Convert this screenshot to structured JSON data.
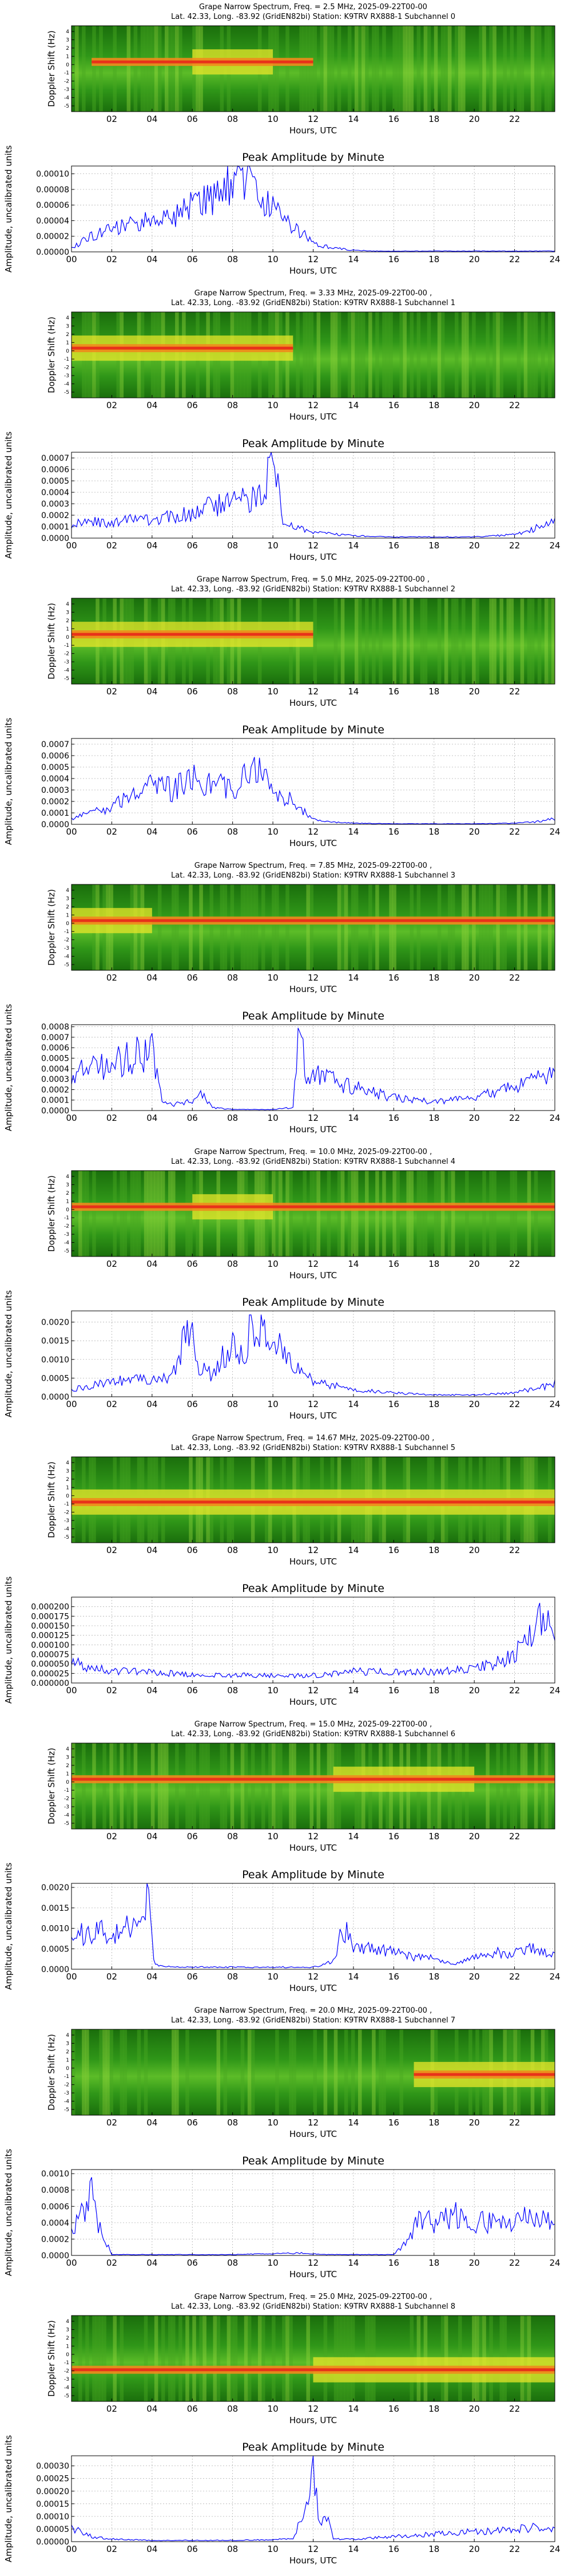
{
  "figure": {
    "spectrogram_ylabel": "Doppler Shift (Hz)",
    "spectrogram_yticks": [
      "4",
      "3",
      "2",
      "1",
      "0",
      "-1",
      "-2",
      "-3",
      "-4",
      "-5"
    ],
    "spectrogram_xticks": [
      "02",
      "04",
      "06",
      "08",
      "10",
      "12",
      "14",
      "16",
      "18",
      "20",
      "22"
    ],
    "amplitude_xticks": [
      "00",
      "02",
      "04",
      "06",
      "08",
      "10",
      "12",
      "14",
      "16",
      "18",
      "20",
      "22",
      "24"
    ],
    "xlabel": "Hours, UTC",
    "amp_title": "Peak Amplitude by Minute",
    "amp_ylabel": "Amplitude, uncalibrated units",
    "colors": {
      "line": "#0000ff",
      "spec_dark": "#1f7a10",
      "spec_mid": "#39a81e",
      "spec_yellow": "#e8e62a",
      "spec_orange": "#f08a1c",
      "spec_red": "#e8321a"
    }
  },
  "chart_data": [
    {
      "type": "heatmap",
      "title_line1": "Grape Narrow Spectrum, Freq. = 2.5 MHz, 2025-09-22T00-00",
      "title_line2": "Lat.  42.33, Long. -83.92 (GridEN82bi) Station: K9TRV RX888-1 Subchannel 0",
      "carrier_hours": [
        1.0,
        12.0
      ],
      "carrier_hz": 0.0,
      "strong_hours": [
        6.0,
        10.0
      ]
    },
    {
      "type": "line",
      "title": "Peak Amplitude by Minute",
      "ylim": [
        0,
        0.00011
      ],
      "yticks": [
        "0.00000",
        "0.00002",
        "0.00004",
        "0.00006",
        "0.00008",
        "0.00010"
      ],
      "x": [
        0,
        1,
        2,
        3,
        4,
        5,
        6,
        7,
        7.5,
        8,
        8.5,
        9,
        10,
        11,
        12,
        13,
        14,
        15,
        16,
        18,
        20,
        22,
        24
      ],
      "values": [
        5e-06,
        2e-05,
        3e-05,
        3.5e-05,
        4e-05,
        4.5e-05,
        6e-05,
        7e-05,
        9e-05,
        8.5e-05,
        9.5e-05,
        8e-05,
        6e-05,
        3.5e-05,
        1e-05,
        5e-06,
        2e-06,
        1e-06,
        1e-06,
        1e-06,
        1e-06,
        1e-06,
        1e-06
      ]
    },
    {
      "type": "heatmap",
      "title_line1": "Grape Narrow Spectrum, Freq. = 3.33 MHz, 2025-09-22T00-00 ,",
      "title_line2": "Lat.  42.33, Long. -83.92 (GridEN82bi) Station: K9TRV RX888-1 Subchannel 1",
      "carrier_hours": [
        0.0,
        11.0
      ],
      "carrier_hz": 0.0,
      "strong_hours": [
        0.0,
        11.0
      ]
    },
    {
      "type": "line",
      "title": "Peak Amplitude by Minute",
      "ylim": [
        0,
        0.00075
      ],
      "yticks": [
        "0.0000",
        "0.0001",
        "0.0002",
        "0.0003",
        "0.0004",
        "0.0005",
        "0.0006",
        "0.0007"
      ],
      "x": [
        0,
        1,
        2,
        3,
        4,
        5,
        6,
        7,
        8,
        9,
        9.5,
        10,
        10.5,
        11,
        12,
        14,
        16,
        18,
        20,
        22,
        23,
        24
      ],
      "values": [
        0.00012,
        0.00015,
        0.00012,
        0.00018,
        0.00015,
        0.0002,
        0.00022,
        0.00028,
        0.0003,
        0.00035,
        0.0004,
        0.0007,
        0.00015,
        0.0001,
        5e-05,
        2e-05,
        1e-05,
        1e-05,
        1e-05,
        3e-05,
        8e-05,
        0.00018
      ]
    },
    {
      "type": "heatmap",
      "title_line1": "Grape Narrow Spectrum, Freq. = 5.0 MHz, 2025-09-22T00-00 ,",
      "title_line2": "Lat.  42.33, Long. -83.92 (GridEN82bi) Station: K9TRV RX888-1 Subchannel 2",
      "carrier_hours": [
        0.0,
        12.0
      ],
      "carrier_hz": 0.0,
      "strong_hours": [
        0.0,
        12.0
      ]
    },
    {
      "type": "line",
      "title": "Peak Amplitude by Minute",
      "ylim": [
        0,
        0.00075
      ],
      "yticks": [
        "0.0000",
        "0.0001",
        "0.0002",
        "0.0003",
        "0.0004",
        "0.0005",
        "0.0006",
        "0.0007"
      ],
      "x": [
        0,
        1,
        2,
        3,
        4,
        5,
        6,
        7,
        8,
        9,
        10,
        11,
        12,
        13,
        14,
        16,
        18,
        20,
        22,
        23,
        24
      ],
      "values": [
        5e-05,
        0.0001,
        0.00015,
        0.00025,
        0.00035,
        0.0003,
        0.0004,
        0.00035,
        0.0003,
        0.0005,
        0.0003,
        0.0002,
        5e-05,
        2e-05,
        1e-05,
        5e-06,
        5e-06,
        5e-06,
        1e-05,
        2e-05,
        5e-05
      ]
    },
    {
      "type": "heatmap",
      "title_line1": "Grape Narrow Spectrum, Freq. = 7.85 MHz, 2025-09-22T00-00 ,",
      "title_line2": "Lat.  42.33, Long. -83.92 (GridEN82bi) Station: K9TRV RX888-1 Subchannel 3",
      "carrier_hours": [
        0.0,
        24.0
      ],
      "carrier_hz": 0.0,
      "strong_hours": [
        0.0,
        4.0
      ]
    },
    {
      "type": "line",
      "title": "Peak Amplitude by Minute",
      "ylim": [
        0,
        0.00082
      ],
      "yticks": [
        "0.0000",
        "0.0001",
        "0.0002",
        "0.0003",
        "0.0004",
        "0.0005",
        "0.0006",
        "0.0007",
        "0.0008"
      ],
      "x": [
        0,
        1,
        2,
        3,
        4,
        4.5,
        5,
        6,
        6.5,
        7,
        8,
        9,
        10,
        11,
        11.3,
        11.6,
        12,
        13,
        14,
        16,
        18,
        20,
        22,
        23,
        24
      ],
      "values": [
        0.00035,
        0.0004,
        0.00045,
        0.0005,
        0.0006,
        0.0001,
        5e-05,
        0.0001,
        0.00015,
        3e-05,
        1e-05,
        1e-05,
        1e-05,
        3e-05,
        0.00075,
        0.0004,
        0.00035,
        0.00028,
        0.00022,
        0.00012,
        8e-05,
        0.00012,
        0.00022,
        0.0003,
        0.00035
      ]
    },
    {
      "type": "heatmap",
      "title_line1": "Grape Narrow Spectrum, Freq. = 10.0 MHz, 2025-09-22T00-00 ,",
      "title_line2": "Lat.  42.33, Long. -83.92 (GridEN82bi) Station: K9TRV RX888-1 Subchannel 4",
      "carrier_hours": [
        0.0,
        24.0
      ],
      "carrier_hz": 0.0,
      "strong_hours": [
        6.0,
        10.0
      ]
    },
    {
      "type": "line",
      "title": "Peak Amplitude by Minute",
      "ylim": [
        0,
        0.0023
      ],
      "yticks": [
        "0.0000",
        "0.0005",
        "0.0010",
        "0.0015",
        "0.0020"
      ],
      "x": [
        0,
        1,
        2,
        3,
        4,
        5,
        6,
        6.3,
        7,
        8,
        8.5,
        9,
        10,
        10.5,
        11,
        12,
        13,
        14,
        16,
        18,
        20,
        22,
        24
      ],
      "values": [
        0.0002,
        0.0003,
        0.0004,
        0.0005,
        0.0004,
        0.0006,
        0.0022,
        0.0008,
        0.0006,
        0.0015,
        0.001,
        0.002,
        0.0015,
        0.0012,
        0.0008,
        0.0004,
        0.0003,
        0.0002,
        0.0001,
        5e-05,
        5e-05,
        0.0001,
        0.00035
      ]
    },
    {
      "type": "heatmap",
      "title_line1": "Grape Narrow Spectrum, Freq. = 14.67 MHz, 2025-09-22T00-00 ,",
      "title_line2": "Lat.  42.33, Long. -83.92 (GridEN82bi) Station: K9TRV RX888-1 Subchannel 5",
      "carrier_hours": [
        0.0,
        24.0
      ],
      "carrier_hz": -1.0,
      "strong_hours": [
        0.0,
        24.0
      ]
    },
    {
      "type": "line",
      "title": "Peak Amplitude by Minute",
      "ylim": [
        0,
        0.000225
      ],
      "yticks": [
        "0.000000",
        "0.000025",
        "0.000050",
        "0.000075",
        "0.000100",
        "0.000125",
        "0.000150",
        "0.000175",
        "0.000200"
      ],
      "x": [
        0,
        1,
        2,
        4,
        6,
        8,
        10,
        12,
        14,
        16,
        18,
        20,
        21,
        22,
        22.5,
        23,
        23.5,
        24
      ],
      "values": [
        6e-05,
        4e-05,
        3e-05,
        3e-05,
        2e-05,
        2e-05,
        2e-05,
        2e-05,
        3e-05,
        3e-05,
        3e-05,
        4e-05,
        5e-05,
        8e-05,
        0.0001,
        0.00014,
        0.0002,
        0.0001
      ]
    },
    {
      "type": "heatmap",
      "title_line1": "Grape Narrow Spectrum, Freq. = 15.0 MHz, 2025-09-22T00-00 ,",
      "title_line2": "Lat.  42.33, Long. -83.92 (GridEN82bi) Station: K9TRV RX888-1 Subchannel 6",
      "carrier_hours": [
        0.0,
        24.0
      ],
      "carrier_hz": 0.0,
      "strong_hours": [
        13.0,
        20.0
      ]
    },
    {
      "type": "line",
      "title": "Peak Amplitude by Minute",
      "ylim": [
        0,
        0.0021
      ],
      "yticks": [
        "0.0000",
        "0.0005",
        "0.0010",
        "0.0015",
        "0.0020"
      ],
      "x": [
        0,
        1,
        2,
        3,
        3.8,
        4.1,
        5,
        8,
        12,
        13,
        13.5,
        14,
        15,
        16,
        17,
        18,
        19,
        20,
        21,
        22,
        23,
        24
      ],
      "values": [
        0.0008,
        0.0009,
        0.0009,
        0.001,
        0.002,
        0.0001,
        5e-05,
        5e-05,
        5e-05,
        0.0002,
        0.001,
        0.0006,
        0.0005,
        0.0004,
        0.0003,
        0.0003,
        0.0001,
        0.0003,
        0.0004,
        0.0004,
        0.0005,
        0.0004
      ]
    },
    {
      "type": "heatmap",
      "title_line1": "Grape Narrow Spectrum, Freq. = 20.0 MHz, 2025-09-22T00-00 ,",
      "title_line2": "Lat.  42.33, Long. -83.92 (GridEN82bi) Station: K9TRV RX888-1 Subchannel 7",
      "carrier_hours": [
        17.0,
        24.0
      ],
      "carrier_hz": -1.0,
      "strong_hours": [
        17.0,
        24.0
      ]
    },
    {
      "type": "line",
      "title": "Peak Amplitude by Minute",
      "ylim": [
        0,
        0.00105
      ],
      "yticks": [
        "0.0000",
        "0.0002",
        "0.0004",
        "0.0006",
        "0.0008",
        "0.0010"
      ],
      "x": [
        0,
        0.5,
        1,
        1.3,
        2,
        4,
        8,
        11.5,
        12.5,
        14,
        16,
        16.8,
        17.2,
        18,
        19,
        20,
        21,
        22,
        23,
        24
      ],
      "values": [
        0.0003,
        0.0005,
        0.0008,
        0.0004,
        1e-05,
        1e-05,
        1e-05,
        3e-05,
        1e-05,
        1e-05,
        1e-05,
        0.0002,
        0.0005,
        0.0004,
        0.0005,
        0.0004,
        0.0004,
        0.0004,
        0.0005,
        0.0004
      ]
    },
    {
      "type": "heatmap",
      "title_line1": "Grape Narrow Spectrum, Freq. = 25.0 MHz, 2025-09-22T00-00 ,",
      "title_line2": "Lat.  42.33, Long. -83.92 (GridEN82bi) Station: K9TRV RX888-1 Subchannel 8",
      "carrier_hours": [
        0.0,
        24.0
      ],
      "carrier_hz": -2.0,
      "strong_hours": [
        12.0,
        24.0
      ]
    },
    {
      "type": "line",
      "title": "Peak Amplitude by Minute",
      "ylim": [
        0,
        0.00034
      ],
      "yticks": [
        "0.00000",
        "0.00005",
        "0.00010",
        "0.00015",
        "0.00020",
        "0.00025",
        "0.00030"
      ],
      "x": [
        0,
        0.5,
        1,
        2,
        4,
        8,
        11,
        11.7,
        12,
        12.3,
        12.6,
        13,
        14,
        16,
        18,
        20,
        22,
        24
      ],
      "values": [
        5e-05,
        4e-05,
        2e-05,
        1e-05,
        5e-06,
        5e-06,
        1e-05,
        0.00015,
        0.00032,
        5e-05,
        0.00012,
        1e-05,
        1e-05,
        2e-05,
        3e-05,
        4e-05,
        5e-05,
        6e-05
      ]
    }
  ]
}
